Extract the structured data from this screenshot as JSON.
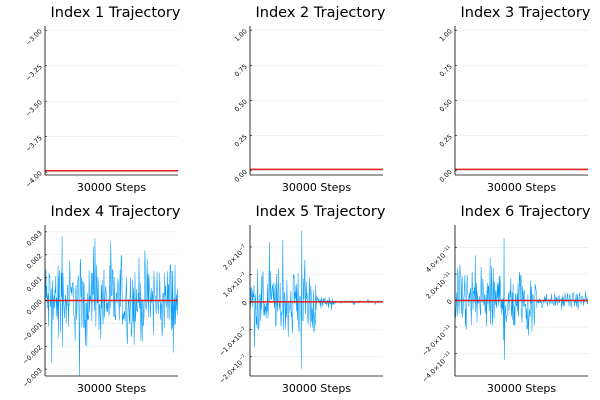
{
  "chart_data": [
    {
      "type": "line",
      "title": "Index 1 Trajectory",
      "xlabel": "30000 Steps",
      "ylabel": "",
      "ylim": [
        -4.02,
        -2.97
      ],
      "yticks": [
        -3.0,
        -3.25,
        -3.5,
        -3.75,
        -4.0
      ],
      "ytick_labels": [
        "−3.00",
        "−3.25",
        "−3.50",
        "−3.75",
        "−4.00"
      ],
      "grid": true,
      "legend": "none",
      "series": [
        {
          "kind": "reference",
          "y": -3.99,
          "color": "#e0201b"
        }
      ]
    },
    {
      "type": "line",
      "title": "Index 2 Trajectory",
      "xlabel": "30000 Steps",
      "ylabel": "",
      "ylim": [
        -0.03,
        1.03
      ],
      "yticks": [
        0.0,
        0.25,
        0.5,
        0.75,
        1.0
      ],
      "ytick_labels": [
        "0.00",
        "0.25",
        "0.50",
        "0.75",
        "1.00"
      ],
      "grid": true,
      "legend": "none",
      "series": [
        {
          "kind": "reference",
          "y": 0.01,
          "color": "#e0201b"
        }
      ]
    },
    {
      "type": "line",
      "title": "Index 3 Trajectory",
      "xlabel": "30000 Steps",
      "ylabel": "",
      "ylim": [
        -0.03,
        1.03
      ],
      "yticks": [
        0.0,
        0.25,
        0.5,
        0.75,
        1.0
      ],
      "ytick_labels": [
        "0.00",
        "0.25",
        "0.50",
        "0.75",
        "1.00"
      ],
      "grid": true,
      "legend": "none",
      "series": [
        {
          "kind": "reference",
          "y": 0.01,
          "color": "#e0201b"
        }
      ]
    },
    {
      "type": "line",
      "title": "Index 4 Trajectory",
      "xlabel": "30000 Steps",
      "ylabel": "",
      "ylim": [
        -0.0033,
        0.0033
      ],
      "yticks": [
        0.003,
        0.002,
        0.001,
        0.0,
        -0.001,
        -0.002,
        -0.003
      ],
      "ytick_labels": [
        "0.003",
        "0.002",
        "0.001",
        "0.000",
        "−0.001",
        "−0.002",
        "−0.003"
      ],
      "grid": true,
      "legend": "none",
      "series": [
        {
          "kind": "noise",
          "color": "#009af9",
          "segments": [
            {
              "x0": 0,
              "x1": 30000,
              "amplitude": 0.0021,
              "peak": 0.0033
            }
          ]
        },
        {
          "kind": "reference",
          "y": 0.0,
          "color": "#e0201b"
        }
      ]
    },
    {
      "type": "line",
      "title": "Index 5 Trajectory",
      "xlabel": "30000 Steps",
      "ylabel": "",
      "ylim": [
        -2.7e-07,
        2.8e-07
      ],
      "yticks": [
        2e-07,
        1e-07,
        0,
        -1e-07,
        -2e-07
      ],
      "ytick_labels": [
        {
          "mant": "2.0×10",
          "exp": "−7"
        },
        {
          "mant": "1.0×10",
          "exp": "−7"
        },
        {
          "mant": "0",
          "exp": ""
        },
        {
          "mant": "−1.0×10",
          "exp": "−7"
        },
        {
          "mant": "−2.0×10",
          "exp": "−7"
        }
      ],
      "grid": true,
      "legend": "none",
      "series": [
        {
          "kind": "noise",
          "color": "#009af9",
          "segments": [
            {
              "x0": 0,
              "x1": 15000,
              "amplitude": 1.45e-07,
              "peak": 2.7e-07
            },
            {
              "x0": 15000,
              "x1": 19000,
              "amplitude": 3e-08,
              "peak": 5e-08
            },
            {
              "x0": 19000,
              "x1": 30000,
              "amplitude": 5e-09,
              "peak": 1.2e-08
            }
          ]
        },
        {
          "kind": "reference",
          "y": 0,
          "color": "#e0201b"
        }
      ]
    },
    {
      "type": "line",
      "title": "Index 6 Trajectory",
      "xlabel": "30000 Steps",
      "ylabel": "",
      "ylim": [
        -5.7e-11,
        5.7e-11
      ],
      "yticks": [
        4e-11,
        2e-11,
        0,
        -2e-11,
        -4e-11
      ],
      "ytick_labels": [
        {
          "mant": "4.0×10",
          "exp": "−11"
        },
        {
          "mant": "2.0×10",
          "exp": "−11"
        },
        {
          "mant": "0",
          "exp": ""
        },
        {
          "mant": "−2.0×10",
          "exp": "−11"
        },
        {
          "mant": "−4.0×10",
          "exp": "−11"
        }
      ],
      "grid": true,
      "legend": "none",
      "series": [
        {
          "kind": "noise",
          "color": "#009af9",
          "segments": [
            {
              "x0": 0,
              "x1": 18500,
              "amplitude": 3.2e-11,
              "peak": 5.5e-11
            },
            {
              "x0": 18500,
              "x1": 30000,
              "amplitude": 7e-12,
              "peak": 1.3e-11
            }
          ]
        },
        {
          "kind": "reference",
          "y": 0,
          "color": "#e0201b"
        }
      ]
    }
  ]
}
